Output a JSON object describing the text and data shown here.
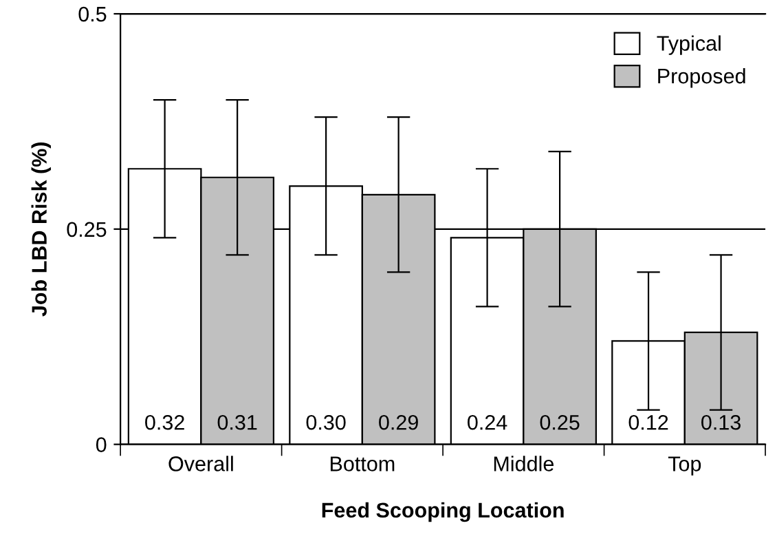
{
  "chart_data": {
    "type": "bar",
    "xlabel": "Feed Scooping Location",
    "ylabel": "Job LBD Risk (%)",
    "categories": [
      "Overall",
      "Bottom",
      "Middle",
      "Top"
    ],
    "series": [
      {
        "name": "Typical",
        "color": "#ffffff",
        "values": [
          0.32,
          0.3,
          0.24,
          0.12
        ],
        "value_labels": [
          "0.32",
          "0.30",
          "0.24",
          "0.12"
        ],
        "errors": [
          [
            0.24,
            0.4
          ],
          [
            0.22,
            0.38
          ],
          [
            0.16,
            0.32
          ],
          [
            0.04,
            0.2
          ]
        ]
      },
      {
        "name": "Proposed",
        "color": "#c0c0c0",
        "values": [
          0.31,
          0.29,
          0.25,
          0.13
        ],
        "value_labels": [
          "0.31",
          "0.29",
          "0.25",
          "0.13"
        ],
        "errors": [
          [
            0.22,
            0.4
          ],
          [
            0.2,
            0.38
          ],
          [
            0.16,
            0.34
          ],
          [
            0.04,
            0.22
          ]
        ]
      }
    ],
    "ylim": [
      0,
      0.5
    ],
    "yticks": [
      0,
      0.25,
      0.5
    ],
    "grid": "y",
    "legend": "top right"
  }
}
